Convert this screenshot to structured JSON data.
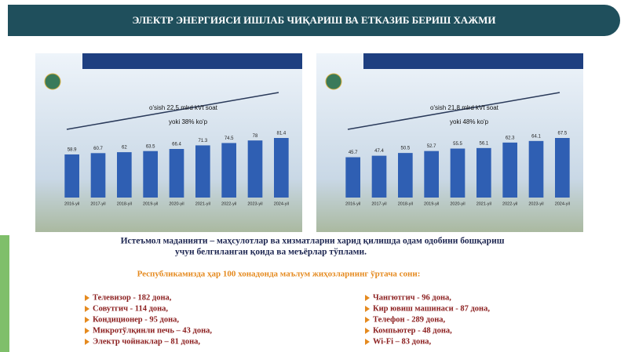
{
  "slide": {
    "title": "ЭЛЕКТР ЭНЕРГИЯСИ ИШЛАБ ЧИҚАРИШ ВА ЕТКАЗИБ БЕРИШ ХАЖМИ",
    "definition": [
      "Истеъмол маданияти – маҳсулотлар ва хизматларни харид қилишда одам одобини бошқариш",
      "учун белгиланган қоида ва меъёрлар тўплами."
    ],
    "subheading": "Республикамизда ҳар 100 хонадонда маълум жиҳозларнинг ўртача сони:",
    "list_left": [
      "Телевизор - 182 дона,",
      "Совутгич - 114 дона,",
      "Кондиционер - 95 дона,",
      "Микротўлқинли печь – 43 дона,",
      "Электр чойнаклар – 81 дона,"
    ],
    "list_right": [
      "Чангютгич - 96 дона,",
      "Кир ювиш машинаси - 87 дона,",
      "Телефон - 289 дона,",
      "Компьютер - 48 дона,",
      "Wi-Fi – 83 дона,"
    ]
  },
  "chart_data": [
    {
      "type": "bar",
      "categories": [
        "2016-yil",
        "2017-yil",
        "2018-yil",
        "2019-yil",
        "2020-yil",
        "2021-yil",
        "2022-yil",
        "2023-yil",
        "2024-yil"
      ],
      "values": [
        58.9,
        60.7,
        62.0,
        63.5,
        66.4,
        71.3,
        74.5,
        78.0,
        81.4
      ],
      "color": "#2f5fb3",
      "annotations": [
        "o'sish 22,5 mlrd kVt soat",
        "yoki 38% ko'p"
      ]
    },
    {
      "type": "bar",
      "categories": [
        "2016-yil",
        "2017-yil",
        "2018-yil",
        "2019-yil",
        "2020-yil",
        "2021-yil",
        "2022-yil",
        "2023-yil",
        "2024-yil"
      ],
      "values": [
        45.7,
        47.4,
        50.5,
        52.7,
        55.5,
        56.1,
        62.3,
        64.1,
        67.5
      ],
      "color": "#2f5fb3",
      "annotations": [
        "o'sish 21,8 mlrd kVt soat",
        "yoki 48% ko'p"
      ]
    }
  ]
}
